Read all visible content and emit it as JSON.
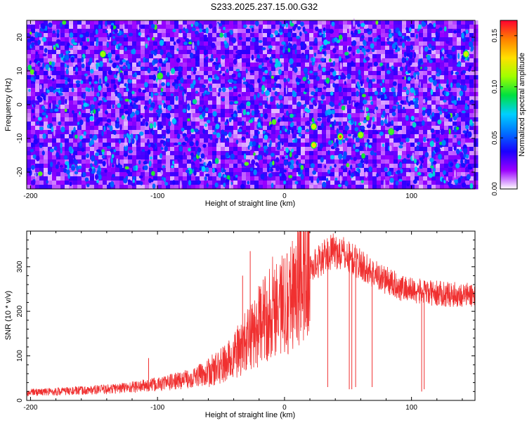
{
  "page_title": "S233.2025.237.15.00.G32",
  "chart_data": [
    {
      "type": "heatmap",
      "title": "S233.2025.237.15.00.G32",
      "xlabel": "Height of straight line (km)",
      "ylabel": "Frequency (Hz)",
      "xlim": [
        -203,
        150
      ],
      "ylim": [
        -25,
        25
      ],
      "x_ticks": [
        -200,
        -100,
        0,
        100
      ],
      "x_tick_labels": [
        "-200",
        "-100",
        "0",
        "100"
      ],
      "y_ticks": [
        -20,
        -10,
        0,
        10,
        20
      ],
      "y_tick_labels": [
        "-20",
        "-10",
        "0",
        "10",
        "20"
      ],
      "colorbar": {
        "label": "Normalized spectral amplitude",
        "range": [
          0.0,
          0.165
        ],
        "ticks": [
          0.0,
          0.05,
          0.1,
          0.15
        ],
        "tick_labels": [
          "0.00",
          "0.05",
          "0.10",
          "0.15"
        ],
        "colors": [
          "#ffffff",
          "#9b00ff",
          "#1a00ff",
          "#0070ff",
          "#00d0ff",
          "#00e040",
          "#a0ff00",
          "#ffe000",
          "#ff8000",
          "#ff0030"
        ]
      },
      "peaks": [
        {
          "x": 44,
          "y": -9.5,
          "value": 0.16
        },
        {
          "x": 23,
          "y": -12,
          "value": 0.13
        },
        {
          "x": 23,
          "y": -6.5,
          "value": 0.12
        },
        {
          "x": 60,
          "y": -9,
          "value": 0.11
        },
        {
          "x": 84,
          "y": -8,
          "value": 0.1
        },
        {
          "x": -143,
          "y": 15,
          "value": 0.11
        },
        {
          "x": -98,
          "y": 8.5,
          "value": 0.1
        },
        {
          "x": 143,
          "y": 15,
          "value": 0.12
        }
      ]
    },
    {
      "type": "line",
      "xlabel": "Height of straight line (km)",
      "ylabel": "SNR (10 * v/v)",
      "xlim": [
        -203,
        150
      ],
      "ylim": [
        0,
        380
      ],
      "x_ticks": [
        -200,
        -100,
        0,
        100
      ],
      "x_tick_labels": [
        "-200",
        "-100",
        "0",
        "100"
      ],
      "y_ticks": [
        0,
        100,
        200,
        300
      ],
      "y_tick_labels": [
        "0",
        "100",
        "200",
        "300"
      ],
      "series": [
        {
          "name": "SNR",
          "color": "#f03030",
          "x": [
            -203,
            -180,
            -160,
            -140,
            -120,
            -100,
            -80,
            -60,
            -45,
            -35,
            -25,
            -15,
            -8,
            0,
            8,
            15,
            22,
            30,
            38,
            45,
            52,
            60,
            70,
            80,
            90,
            100,
            110,
            120,
            130,
            140,
            150
          ],
          "values": [
            18,
            20,
            22,
            25,
            30,
            36,
            46,
            62,
            85,
            115,
            150,
            185,
            220,
            215,
            255,
            280,
            300,
            320,
            335,
            330,
            320,
            305,
            285,
            270,
            255,
            248,
            242,
            240,
            238,
            237,
            236
          ],
          "dips": [
            {
              "x": 34,
              "value": 30
            },
            {
              "x": 51,
              "value": 25
            },
            {
              "x": 53,
              "value": 25
            },
            {
              "x": 56,
              "value": 30
            },
            {
              "x": 69,
              "value": 30
            },
            {
              "x": 108,
              "value": 20
            },
            {
              "x": 110,
              "value": 25
            }
          ],
          "spikes": [
            {
              "x": -107,
              "value": 95
            },
            {
              "x": -33,
              "value": 280
            },
            {
              "x": -27,
              "value": 335
            },
            {
              "x": -14,
              "value": 245
            },
            {
              "x": 2,
              "value": 330
            },
            {
              "x": 13,
              "value": 365
            },
            {
              "x": 15,
              "value": 370
            }
          ]
        }
      ]
    }
  ]
}
